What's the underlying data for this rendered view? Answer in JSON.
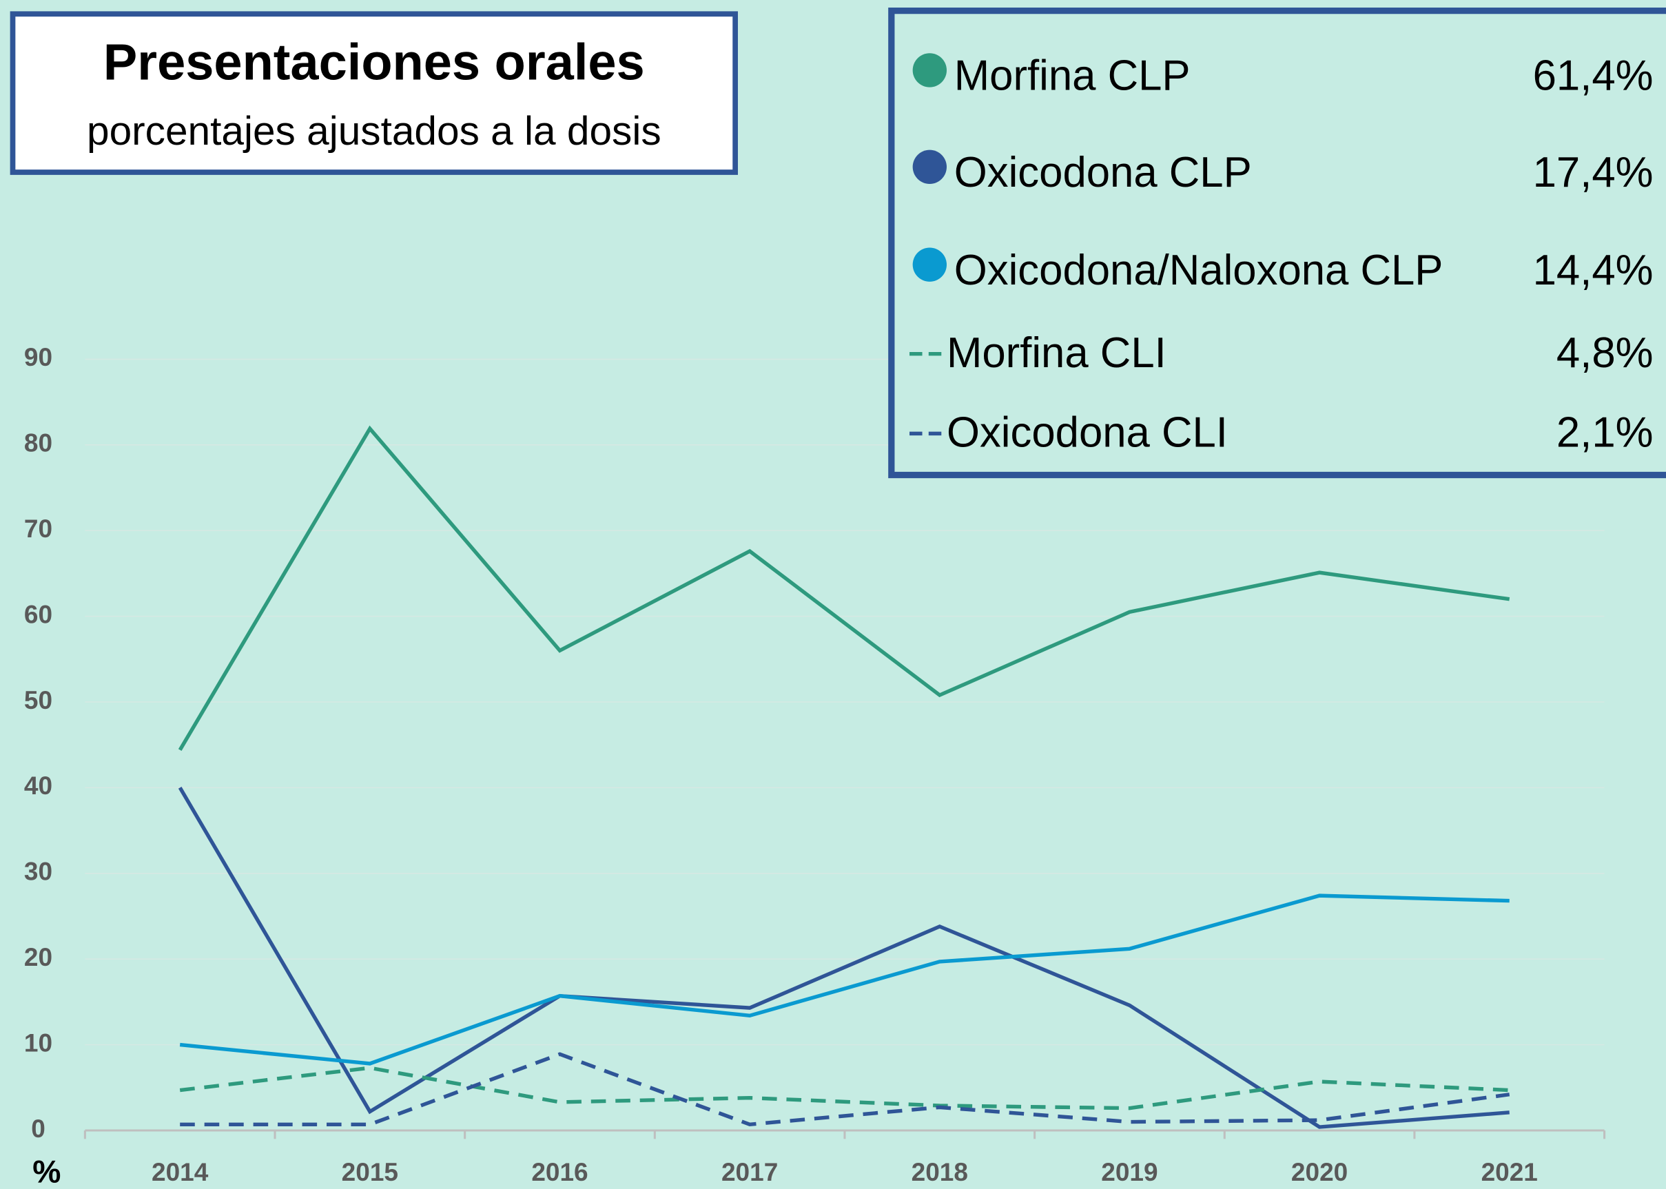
{
  "chart_data": {
    "type": "line",
    "title": "Presentaciones orales",
    "subtitle": "porcentajes ajustados a la dosis",
    "ylabel": "%",
    "categories": [
      "2014",
      "2015",
      "2016",
      "2017",
      "2018",
      "2019",
      "2020",
      "2021"
    ],
    "ylim": [
      0,
      90
    ],
    "yticks": [
      0,
      10,
      20,
      30,
      40,
      50,
      60,
      70,
      80,
      90
    ],
    "grid": true,
    "legend": "top-right",
    "series": [
      {
        "name": "Morfina CLP",
        "share": "61,4%",
        "color": "#2e9a7e",
        "dashed": false,
        "values": [
          44.4,
          81.9,
          56,
          67.6,
          50.8,
          60.5,
          65.1,
          62
        ]
      },
      {
        "name": "Oxicodona CLP",
        "share": "17,4%",
        "color": "#2f5597",
        "dashed": false,
        "values": [
          40,
          2.2,
          15.7,
          14.3,
          23.8,
          14.6,
          0.4,
          2.1
        ]
      },
      {
        "name": "Oxicodona/Naloxona CLP",
        "share": "14,4%",
        "color": "#0a9ad0",
        "dashed": false,
        "values": [
          10,
          7.8,
          15.7,
          13.4,
          19.7,
          21.2,
          27.4,
          26.8
        ]
      },
      {
        "name": "Morfina CLI",
        "share": "4,8%",
        "color": "#2e9a7e",
        "dashed": true,
        "values": [
          4.7,
          7.3,
          3.3,
          3.8,
          2.9,
          2.6,
          5.7,
          4.7
        ]
      },
      {
        "name": "Oxicodona CLI",
        "share": "2,1%",
        "color": "#2f5597",
        "dashed": true,
        "values": [
          0.7,
          0.7,
          8.9,
          0.7,
          2.7,
          1,
          1.2,
          4.2
        ]
      }
    ]
  }
}
